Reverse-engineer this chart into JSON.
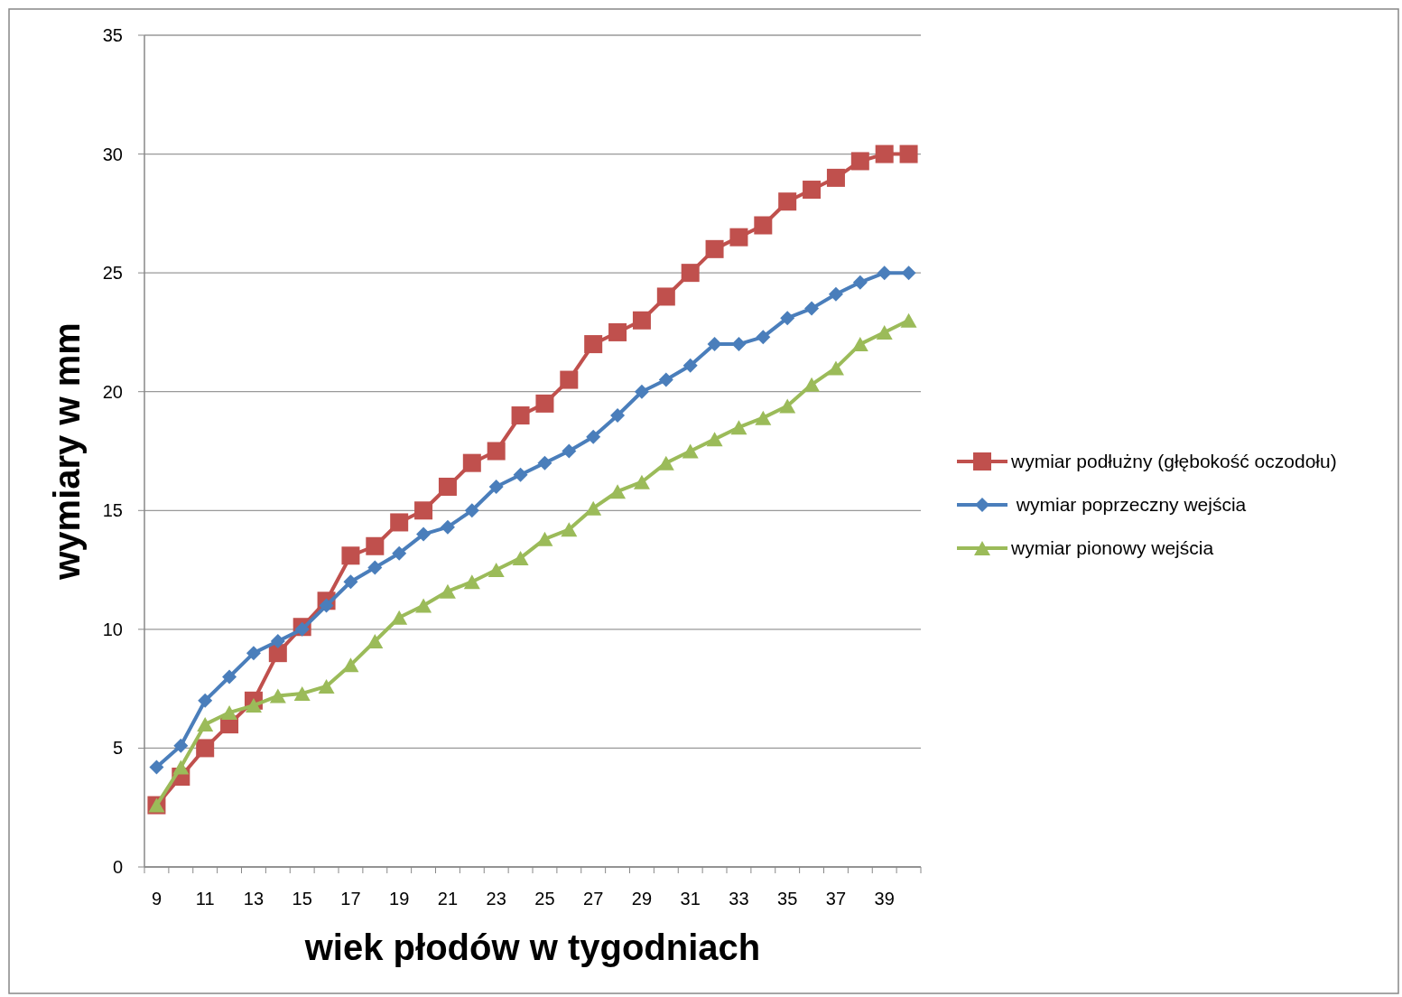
{
  "chart_data": {
    "type": "line",
    "xlabel": "wiek  płodów w tygodniach",
    "ylabel": "wymiary  w mm",
    "categories": [
      "9",
      null,
      "11",
      null,
      "13",
      null,
      "15",
      null,
      "17",
      null,
      "19",
      null,
      "21",
      null,
      "23",
      null,
      "25",
      null,
      "27",
      null,
      "29",
      null,
      "31",
      null,
      "33",
      null,
      "35",
      null,
      "37",
      null,
      "39",
      null
    ],
    "series": [
      {
        "name": "wymiar podłużny (głębokość oczodołu)",
        "color": "#c0504d",
        "marker": "square",
        "values": [
          2.6,
          3.8,
          5,
          6,
          7,
          9,
          10.1,
          11.2,
          13.1,
          13.5,
          14.5,
          15,
          16,
          17,
          17.5,
          19,
          19.5,
          20.5,
          22,
          22.5,
          23,
          24,
          25,
          26,
          26.5,
          27,
          28,
          28.5,
          29,
          29.7,
          30,
          30
        ]
      },
      {
        "name": " wymiar poprzeczny wejścia",
        "color": "#4a7ebb",
        "marker": "diamond",
        "values": [
          4.2,
          5.1,
          7,
          8,
          9,
          9.5,
          10,
          11,
          12,
          12.6,
          13.2,
          14,
          14.3,
          15,
          16,
          16.5,
          17,
          17.5,
          18.1,
          19,
          20,
          20.5,
          21.1,
          22,
          22,
          22.3,
          23.1,
          23.5,
          24.1,
          24.6,
          25,
          25
        ]
      },
      {
        "name": "wymiar pionowy wejścia",
        "color": "#9bbb59",
        "marker": "triangle",
        "values": [
          2.6,
          4.2,
          6,
          6.5,
          6.8,
          7.2,
          7.3,
          7.6,
          8.5,
          9.5,
          10.5,
          11,
          11.6,
          12,
          12.5,
          13,
          13.8,
          14.2,
          15.1,
          15.8,
          16.2,
          17,
          17.5,
          18,
          18.5,
          18.9,
          19.4,
          20.3,
          21,
          22,
          22.5,
          23
        ]
      }
    ],
    "ylim": [
      0,
      35
    ],
    "yticks": [
      0,
      5,
      10,
      15,
      20,
      25,
      30,
      35
    ],
    "grid": "y",
    "legend": "right",
    "line_style": "solid"
  }
}
